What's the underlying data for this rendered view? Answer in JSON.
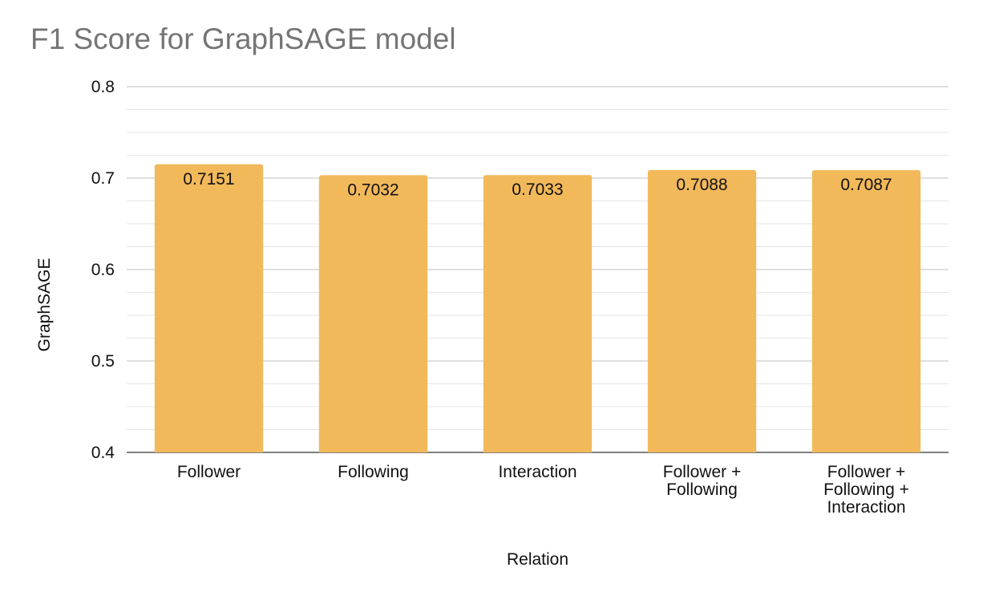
{
  "chart_data": {
    "type": "bar",
    "title": "F1 Score for GraphSAGE model",
    "xlabel": "Relation",
    "ylabel": "GraphSAGE",
    "categories": [
      [
        "Follower"
      ],
      [
        "Following"
      ],
      [
        "Interaction"
      ],
      [
        "Follower +",
        "Following"
      ],
      [
        "Follower +",
        "Following +",
        "Interaction"
      ]
    ],
    "values": [
      0.7151,
      0.7032,
      0.7033,
      0.7088,
      0.7087
    ],
    "data_labels": [
      "0.7151",
      "0.7032",
      "0.7033",
      "0.7088",
      "0.7087"
    ],
    "ylim": [
      0.4,
      0.8
    ],
    "yticks": [
      0.4,
      0.5,
      0.6,
      0.7,
      0.8
    ],
    "ytick_labels": [
      "0.4",
      "0.5",
      "0.6",
      "0.7",
      "0.8"
    ],
    "minor_gridlines_per_major": 3,
    "grid": true,
    "legend": "none",
    "bar_color": "#f2b95a",
    "major_grid_color": "#cccccc",
    "minor_grid_color": "#e4e4e4"
  }
}
